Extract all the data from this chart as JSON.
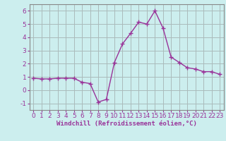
{
  "x": [
    0,
    1,
    2,
    3,
    4,
    5,
    6,
    7,
    8,
    9,
    10,
    11,
    12,
    13,
    14,
    15,
    16,
    17,
    18,
    19,
    20,
    21,
    22,
    23
  ],
  "y": [
    0.9,
    0.85,
    0.85,
    0.9,
    0.9,
    0.9,
    0.6,
    0.5,
    -0.9,
    -0.7,
    2.1,
    3.5,
    4.3,
    5.15,
    5.0,
    6.0,
    4.7,
    2.5,
    2.1,
    1.7,
    1.6,
    1.4,
    1.4,
    1.2
  ],
  "line_color": "#993399",
  "marker": "+",
  "marker_size": 4,
  "bg_color": "#cceeee",
  "grid_color": "#aabbbb",
  "xlabel": "Windchill (Refroidissement éolien,°C)",
  "xlim": [
    -0.5,
    23.5
  ],
  "ylim": [
    -1.5,
    6.5
  ],
  "yticks": [
    -1,
    0,
    1,
    2,
    3,
    4,
    5,
    6
  ],
  "xticks": [
    0,
    1,
    2,
    3,
    4,
    5,
    6,
    7,
    8,
    9,
    10,
    11,
    12,
    13,
    14,
    15,
    16,
    17,
    18,
    19,
    20,
    21,
    22,
    23
  ],
  "xlabel_fontsize": 6.5,
  "tick_fontsize": 6.5,
  "linewidth": 1.0,
  "markeredgewidth": 1.0
}
